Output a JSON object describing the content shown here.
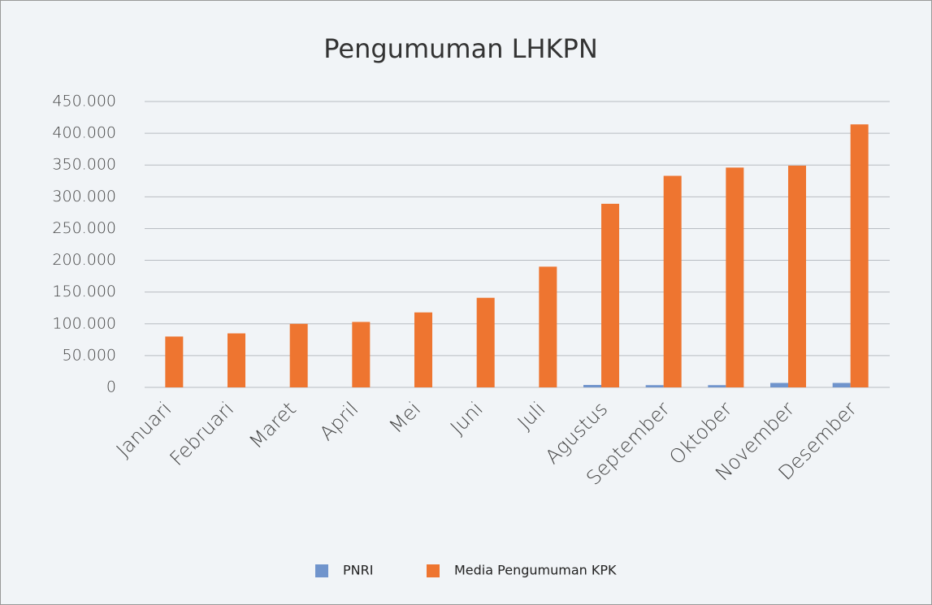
{
  "chart_data": {
    "type": "bar",
    "title": "Pengumuman LHKPN",
    "categories": [
      "Januari",
      "Februari",
      "Maret",
      "April",
      "Mei",
      "Juni",
      "Juli",
      "Agustus",
      "September",
      "Oktober",
      "November",
      "Desember"
    ],
    "series": [
      {
        "name": "PNRI",
        "color": "#7094cc",
        "values": [
          0,
          0,
          0,
          0,
          0,
          0,
          0,
          3800,
          3500,
          3500,
          7000,
          7000
        ]
      },
      {
        "name": "Media Pengumuman KPK",
        "color": "#ee7530",
        "values": [
          80000,
          85000,
          100000,
          103000,
          118000,
          141000,
          190000,
          289000,
          333000,
          346000,
          349000,
          414000
        ]
      }
    ],
    "ylim": [
      0,
      450000
    ],
    "yticks": [
      0,
      {
        "value": 50000,
        "label": "50.000"
      },
      {
        "value": 100000,
        "label": "100.000"
      },
      {
        "value": 150000,
        "label": "150.000"
      },
      {
        "value": 200000,
        "label": "200.000"
      },
      {
        "value": 250000,
        "label": "250.000"
      },
      {
        "value": 300000,
        "label": "300.000"
      },
      {
        "value": 350000,
        "label": "350.000"
      },
      {
        "value": 400000,
        "label": "400.000"
      },
      {
        "value": 450000,
        "label": "450.000"
      }
    ],
    "grid": true,
    "legend": "bottom"
  }
}
